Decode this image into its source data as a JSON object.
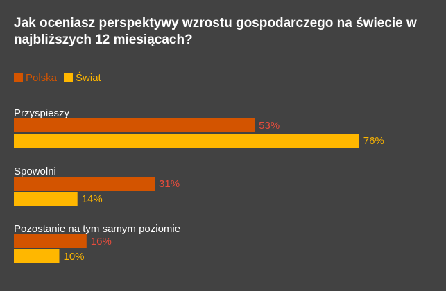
{
  "chart_data": {
    "type": "bar",
    "orientation": "horizontal",
    "title": "Jak oceniasz perspektywy wzrostu gospodarczego na świecie w najbliższych 12 miesiącach?",
    "categories": [
      "Przyspieszy",
      "Spowolni",
      "Pozostanie na tym samym poziomie"
    ],
    "series": [
      {
        "name": "Polska",
        "values": [
          53,
          31,
          16
        ],
        "color": "#d35400",
        "label_color": "#e74c3c"
      },
      {
        "name": "Świat",
        "values": [
          76,
          14,
          10
        ],
        "color": "#ffb700",
        "label_color": "#ffb700"
      }
    ],
    "value_suffix": "%",
    "legend_position": "top-left",
    "grid": false
  }
}
